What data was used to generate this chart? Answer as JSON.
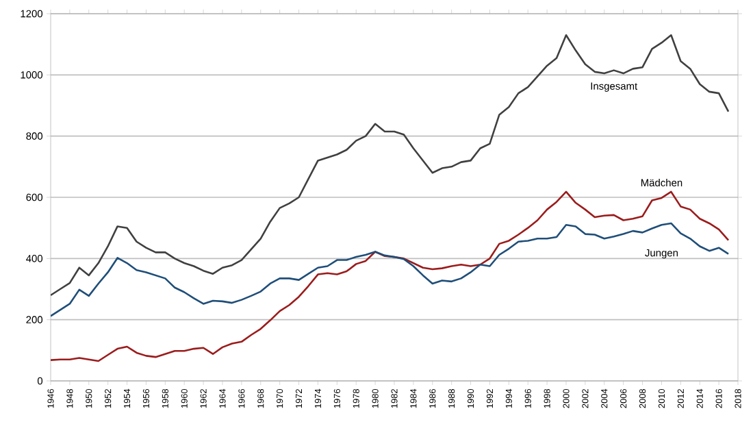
{
  "chart_data": {
    "type": "line",
    "x": [
      1946,
      1947,
      1948,
      1949,
      1950,
      1951,
      1952,
      1953,
      1954,
      1955,
      1956,
      1957,
      1958,
      1959,
      1960,
      1961,
      1962,
      1963,
      1964,
      1965,
      1966,
      1967,
      1968,
      1969,
      1970,
      1971,
      1972,
      1973,
      1974,
      1975,
      1976,
      1977,
      1978,
      1979,
      1980,
      1981,
      1982,
      1983,
      1984,
      1985,
      1986,
      1987,
      1988,
      1989,
      1990,
      1991,
      1992,
      1993,
      1994,
      1995,
      1996,
      1997,
      1998,
      1999,
      2000,
      2001,
      2002,
      2003,
      2004,
      2005,
      2006,
      2007,
      2008,
      2009,
      2010,
      2011,
      2012,
      2013,
      2014,
      2015,
      2016,
      2017
    ],
    "series": [
      {
        "name": "Insgesamt",
        "color": "#404040",
        "values": [
          280,
          300,
          320,
          370,
          345,
          385,
          440,
          505,
          500,
          455,
          435,
          420,
          420,
          400,
          385,
          375,
          360,
          350,
          370,
          378,
          395,
          430,
          465,
          520,
          565,
          580,
          600,
          660,
          720,
          730,
          740,
          755,
          785,
          800,
          840,
          815,
          815,
          805,
          760,
          720,
          680,
          695,
          700,
          715,
          720,
          760,
          775,
          870,
          895,
          940,
          960,
          995,
          1030,
          1055,
          1130,
          1080,
          1035,
          1010,
          1005,
          1015,
          1005,
          1020,
          1025,
          1085,
          1105,
          1130,
          1045,
          1020,
          970,
          945,
          940,
          880
        ]
      },
      {
        "name": "Mädchen",
        "color": "#9b1c1c",
        "values": [
          68,
          70,
          70,
          75,
          70,
          65,
          85,
          105,
          112,
          92,
          82,
          78,
          88,
          98,
          98,
          105,
          108,
          88,
          110,
          122,
          128,
          150,
          170,
          198,
          228,
          248,
          275,
          310,
          348,
          352,
          348,
          358,
          382,
          392,
          422,
          408,
          405,
          400,
          385,
          370,
          365,
          368,
          375,
          380,
          375,
          380,
          400,
          448,
          458,
          478,
          500,
          525,
          560,
          585,
          618,
          582,
          560,
          535,
          540,
          542,
          525,
          530,
          538,
          590,
          598,
          618,
          570,
          560,
          530,
          515,
          495,
          460
        ]
      },
      {
        "name": "Jungen",
        "color": "#1f4e79",
        "values": [
          212,
          232,
          252,
          298,
          278,
          318,
          355,
          402,
          385,
          362,
          355,
          345,
          335,
          305,
          290,
          270,
          252,
          262,
          260,
          255,
          265,
          278,
          292,
          318,
          335,
          335,
          330,
          350,
          370,
          375,
          395,
          395,
          405,
          412,
          422,
          410,
          405,
          398,
          375,
          345,
          318,
          328,
          325,
          335,
          355,
          380,
          375,
          412,
          432,
          455,
          458,
          465,
          465,
          470,
          510,
          505,
          480,
          478,
          465,
          472,
          480,
          490,
          485,
          498,
          510,
          515,
          482,
          465,
          440,
          425,
          435,
          415
        ]
      }
    ],
    "xlim": [
      1946,
      2018
    ],
    "xticks": [
      1946,
      1948,
      1950,
      1952,
      1954,
      1956,
      1958,
      1960,
      1962,
      1964,
      1966,
      1968,
      1970,
      1972,
      1974,
      1976,
      1978,
      1980,
      1982,
      1984,
      1986,
      1988,
      1990,
      1992,
      1994,
      1996,
      1998,
      2000,
      2002,
      2004,
      2006,
      2008,
      2010,
      2012,
      2014,
      2016,
      2018
    ],
    "ylim": [
      0,
      1200
    ],
    "yticks": [
      0,
      200,
      400,
      600,
      800,
      1000,
      1200
    ],
    "grid": "y",
    "marker": "none",
    "line_style": "solid"
  }
}
